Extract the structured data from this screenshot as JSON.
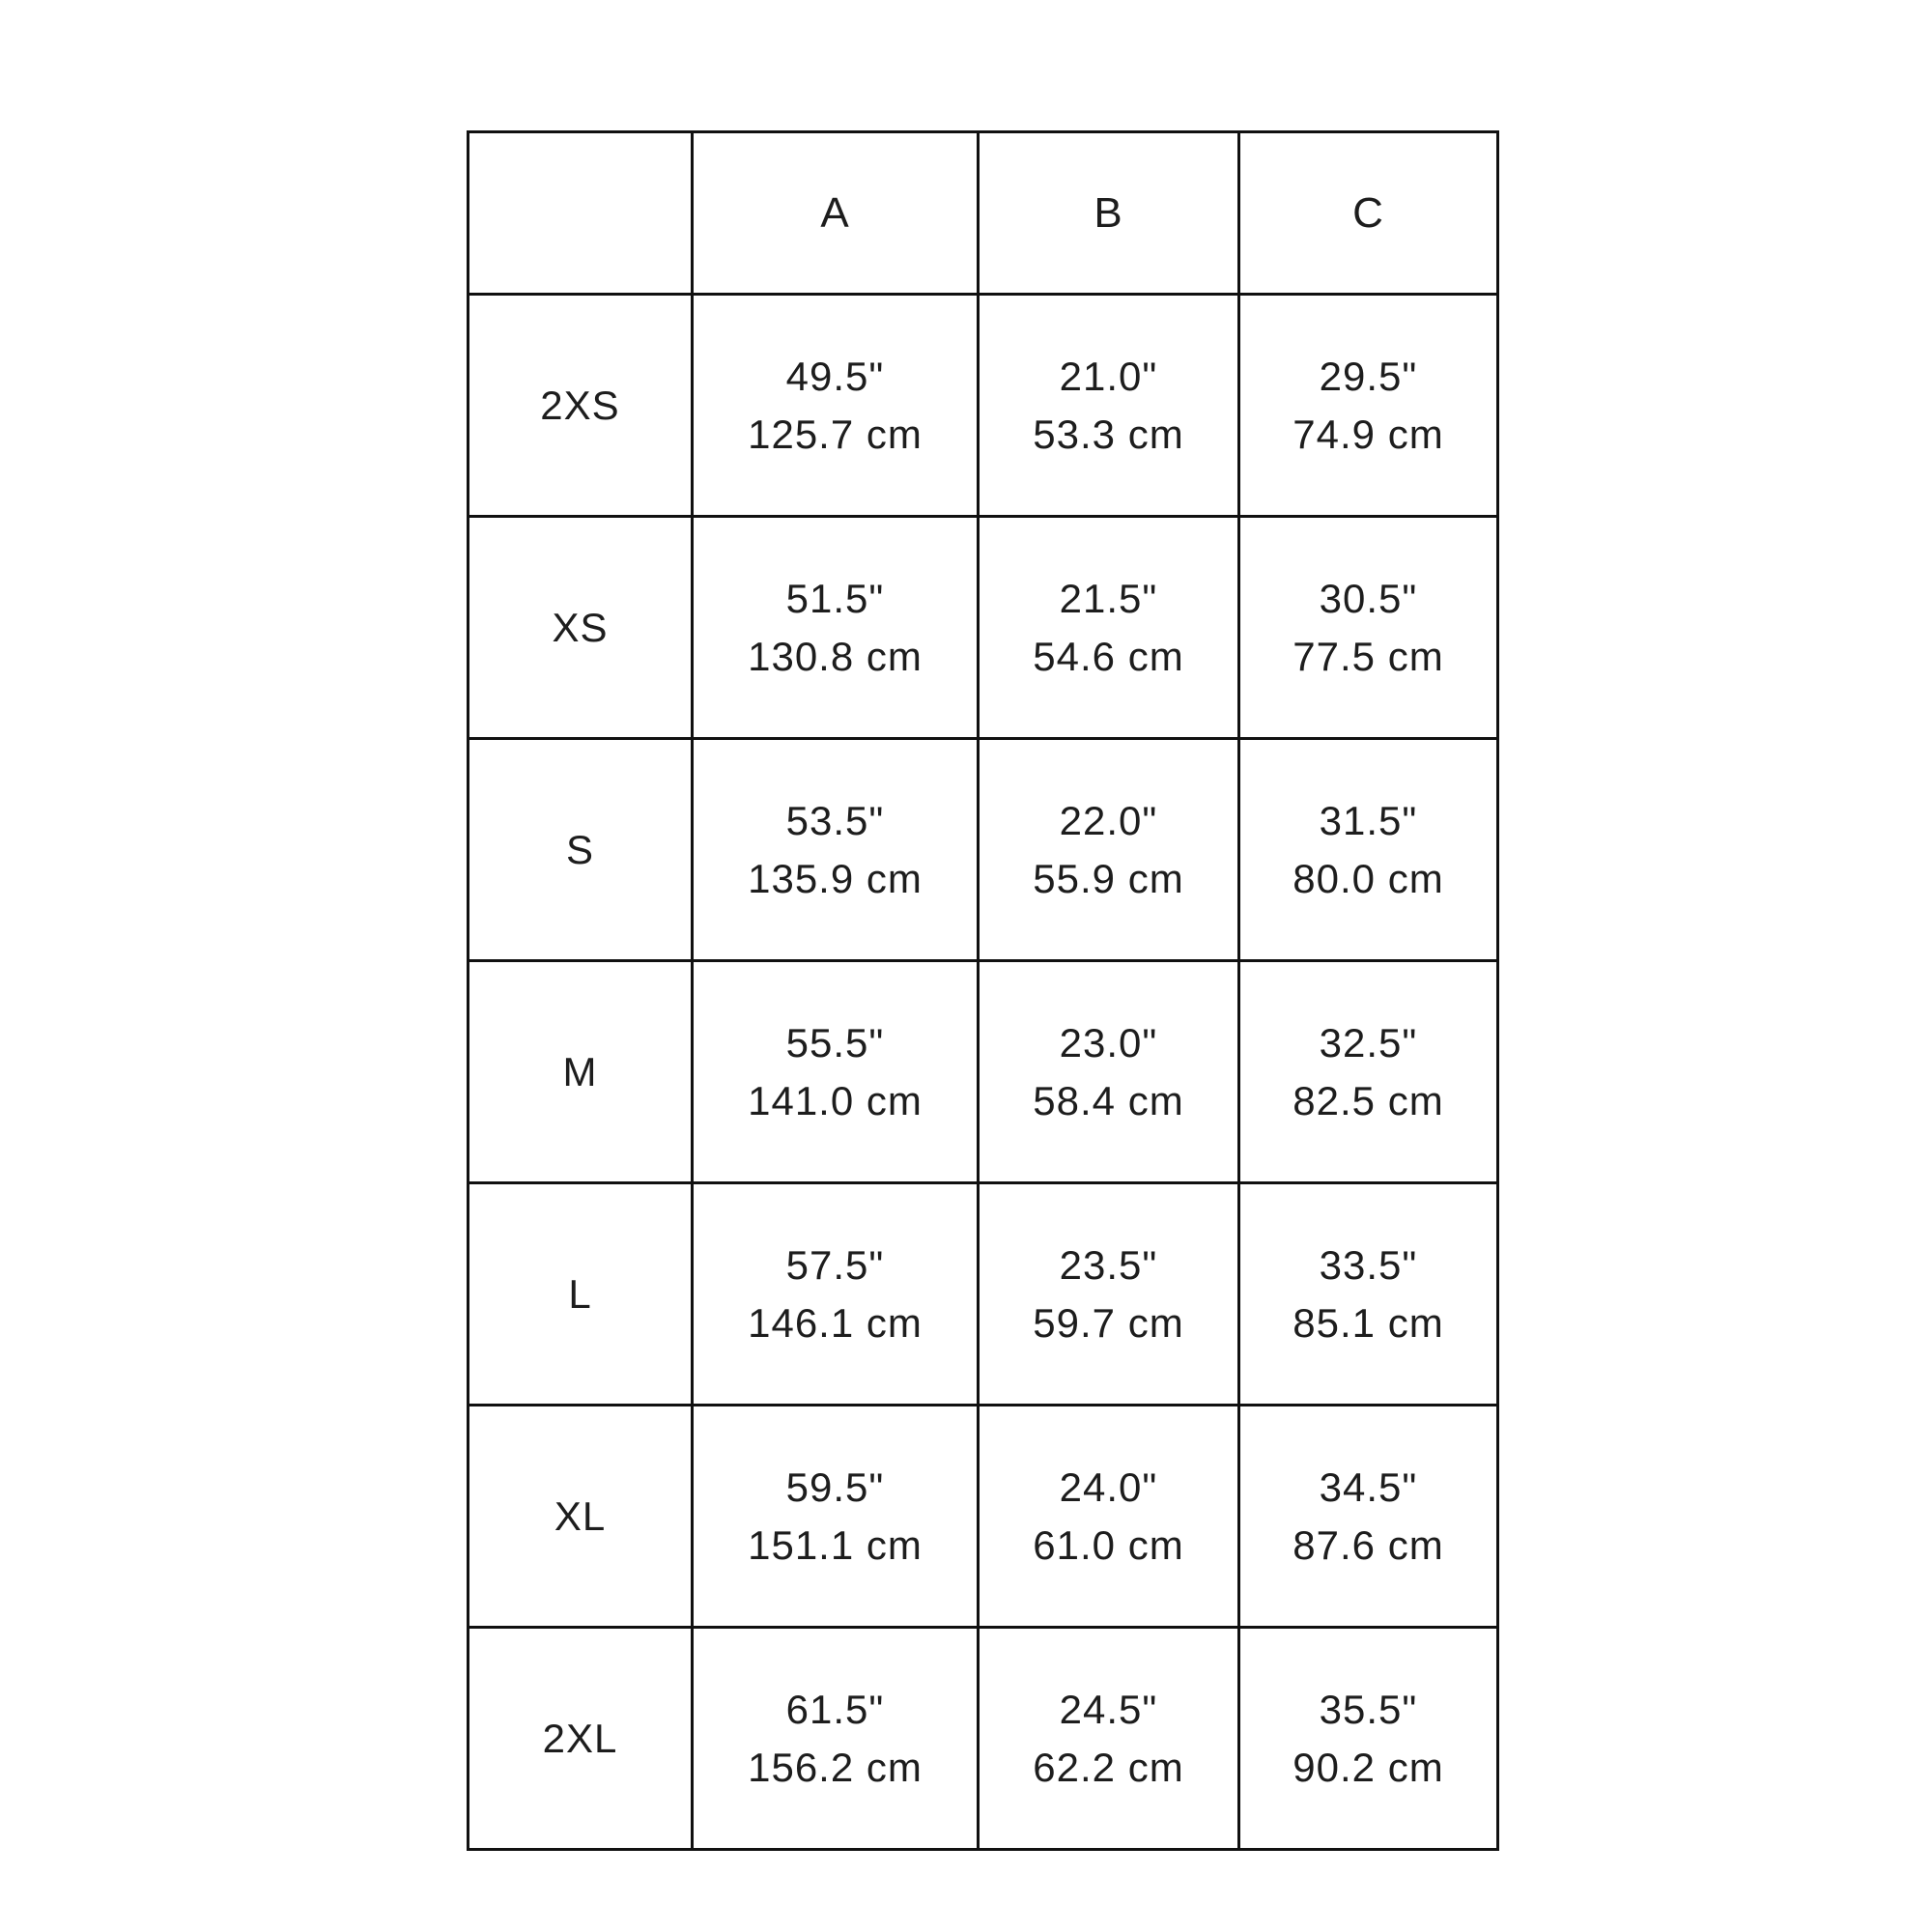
{
  "table": {
    "columns": [
      "",
      "A",
      "B",
      "C"
    ],
    "rows": [
      {
        "label": "2XS",
        "measurements": [
          {
            "inches": "49.5\"",
            "cm": "125.7 cm"
          },
          {
            "inches": "21.0\"",
            "cm": "53.3 cm"
          },
          {
            "inches": "29.5\"",
            "cm": "74.9 cm"
          }
        ]
      },
      {
        "label": "XS",
        "measurements": [
          {
            "inches": "51.5\"",
            "cm": "130.8 cm"
          },
          {
            "inches": "21.5\"",
            "cm": "54.6 cm"
          },
          {
            "inches": "30.5\"",
            "cm": "77.5 cm"
          }
        ]
      },
      {
        "label": "S",
        "measurements": [
          {
            "inches": "53.5\"",
            "cm": "135.9 cm"
          },
          {
            "inches": "22.0\"",
            "cm": "55.9 cm"
          },
          {
            "inches": "31.5\"",
            "cm": "80.0 cm"
          }
        ]
      },
      {
        "label": "M",
        "measurements": [
          {
            "inches": "55.5\"",
            "cm": "141.0 cm"
          },
          {
            "inches": "23.0\"",
            "cm": "58.4 cm"
          },
          {
            "inches": "32.5\"",
            "cm": "82.5 cm"
          }
        ]
      },
      {
        "label": "L",
        "measurements": [
          {
            "inches": "57.5\"",
            "cm": "146.1 cm"
          },
          {
            "inches": "23.5\"",
            "cm": "59.7 cm"
          },
          {
            "inches": "33.5\"",
            "cm": "85.1 cm"
          }
        ]
      },
      {
        "label": "XL",
        "measurements": [
          {
            "inches": "59.5\"",
            "cm": "151.1 cm"
          },
          {
            "inches": "24.0\"",
            "cm": "61.0 cm"
          },
          {
            "inches": "34.5\"",
            "cm": "87.6 cm"
          }
        ]
      },
      {
        "label": "2XL",
        "measurements": [
          {
            "inches": "61.5\"",
            "cm": "156.2 cm"
          },
          {
            "inches": "24.5\"",
            "cm": "62.2 cm"
          },
          {
            "inches": "35.5\"",
            "cm": "90.2 cm"
          }
        ]
      }
    ],
    "colors": {
      "border": "#111111",
      "text": "#1d1d1d",
      "background": "#ffffff"
    }
  }
}
